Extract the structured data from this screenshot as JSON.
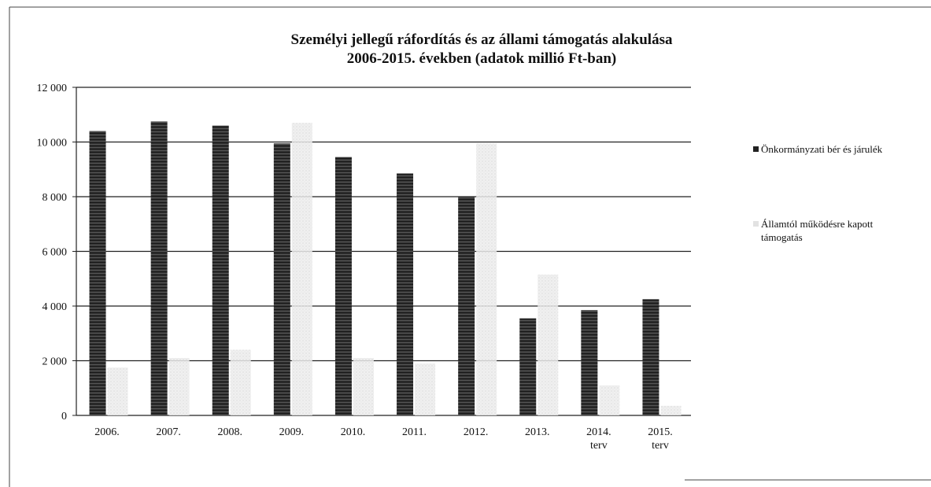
{
  "chart_data": {
    "type": "bar",
    "title_lines": [
      "Személyi jellegű ráfordítás és az állami támogatás alakulása",
      "2006-2015. években (adatok millió Ft-ban)"
    ],
    "categories": [
      [
        "2006."
      ],
      [
        "2007."
      ],
      [
        "2008."
      ],
      [
        "2009."
      ],
      [
        "2010."
      ],
      [
        "2011."
      ],
      [
        "2012."
      ],
      [
        "2013."
      ],
      [
        "2014.",
        "terv"
      ],
      [
        "2015.",
        "terv"
      ]
    ],
    "series": [
      {
        "name": "Önkormányzati bér és járulék",
        "color": "#2a2a2a",
        "values": [
          10400,
          10750,
          10600,
          9950,
          9450,
          8850,
          8000,
          3550,
          3850,
          4250
        ]
      },
      {
        "name_lines": [
          "Államtól működésre kapott",
          "támogatás"
        ],
        "color": "#e6e6e6",
        "values": [
          1750,
          2100,
          2400,
          10700,
          2100,
          1900,
          9950,
          5150,
          1100,
          350
        ]
      }
    ],
    "ylim": [
      0,
      12000
    ],
    "yticks": [
      "0",
      "2 000",
      "4 000",
      "6 000",
      "8 000",
      "10 000",
      "12 000"
    ],
    "ytick_values": [
      0,
      2000,
      4000,
      6000,
      8000,
      10000,
      12000
    ],
    "grid": true,
    "legend_position": "right"
  }
}
